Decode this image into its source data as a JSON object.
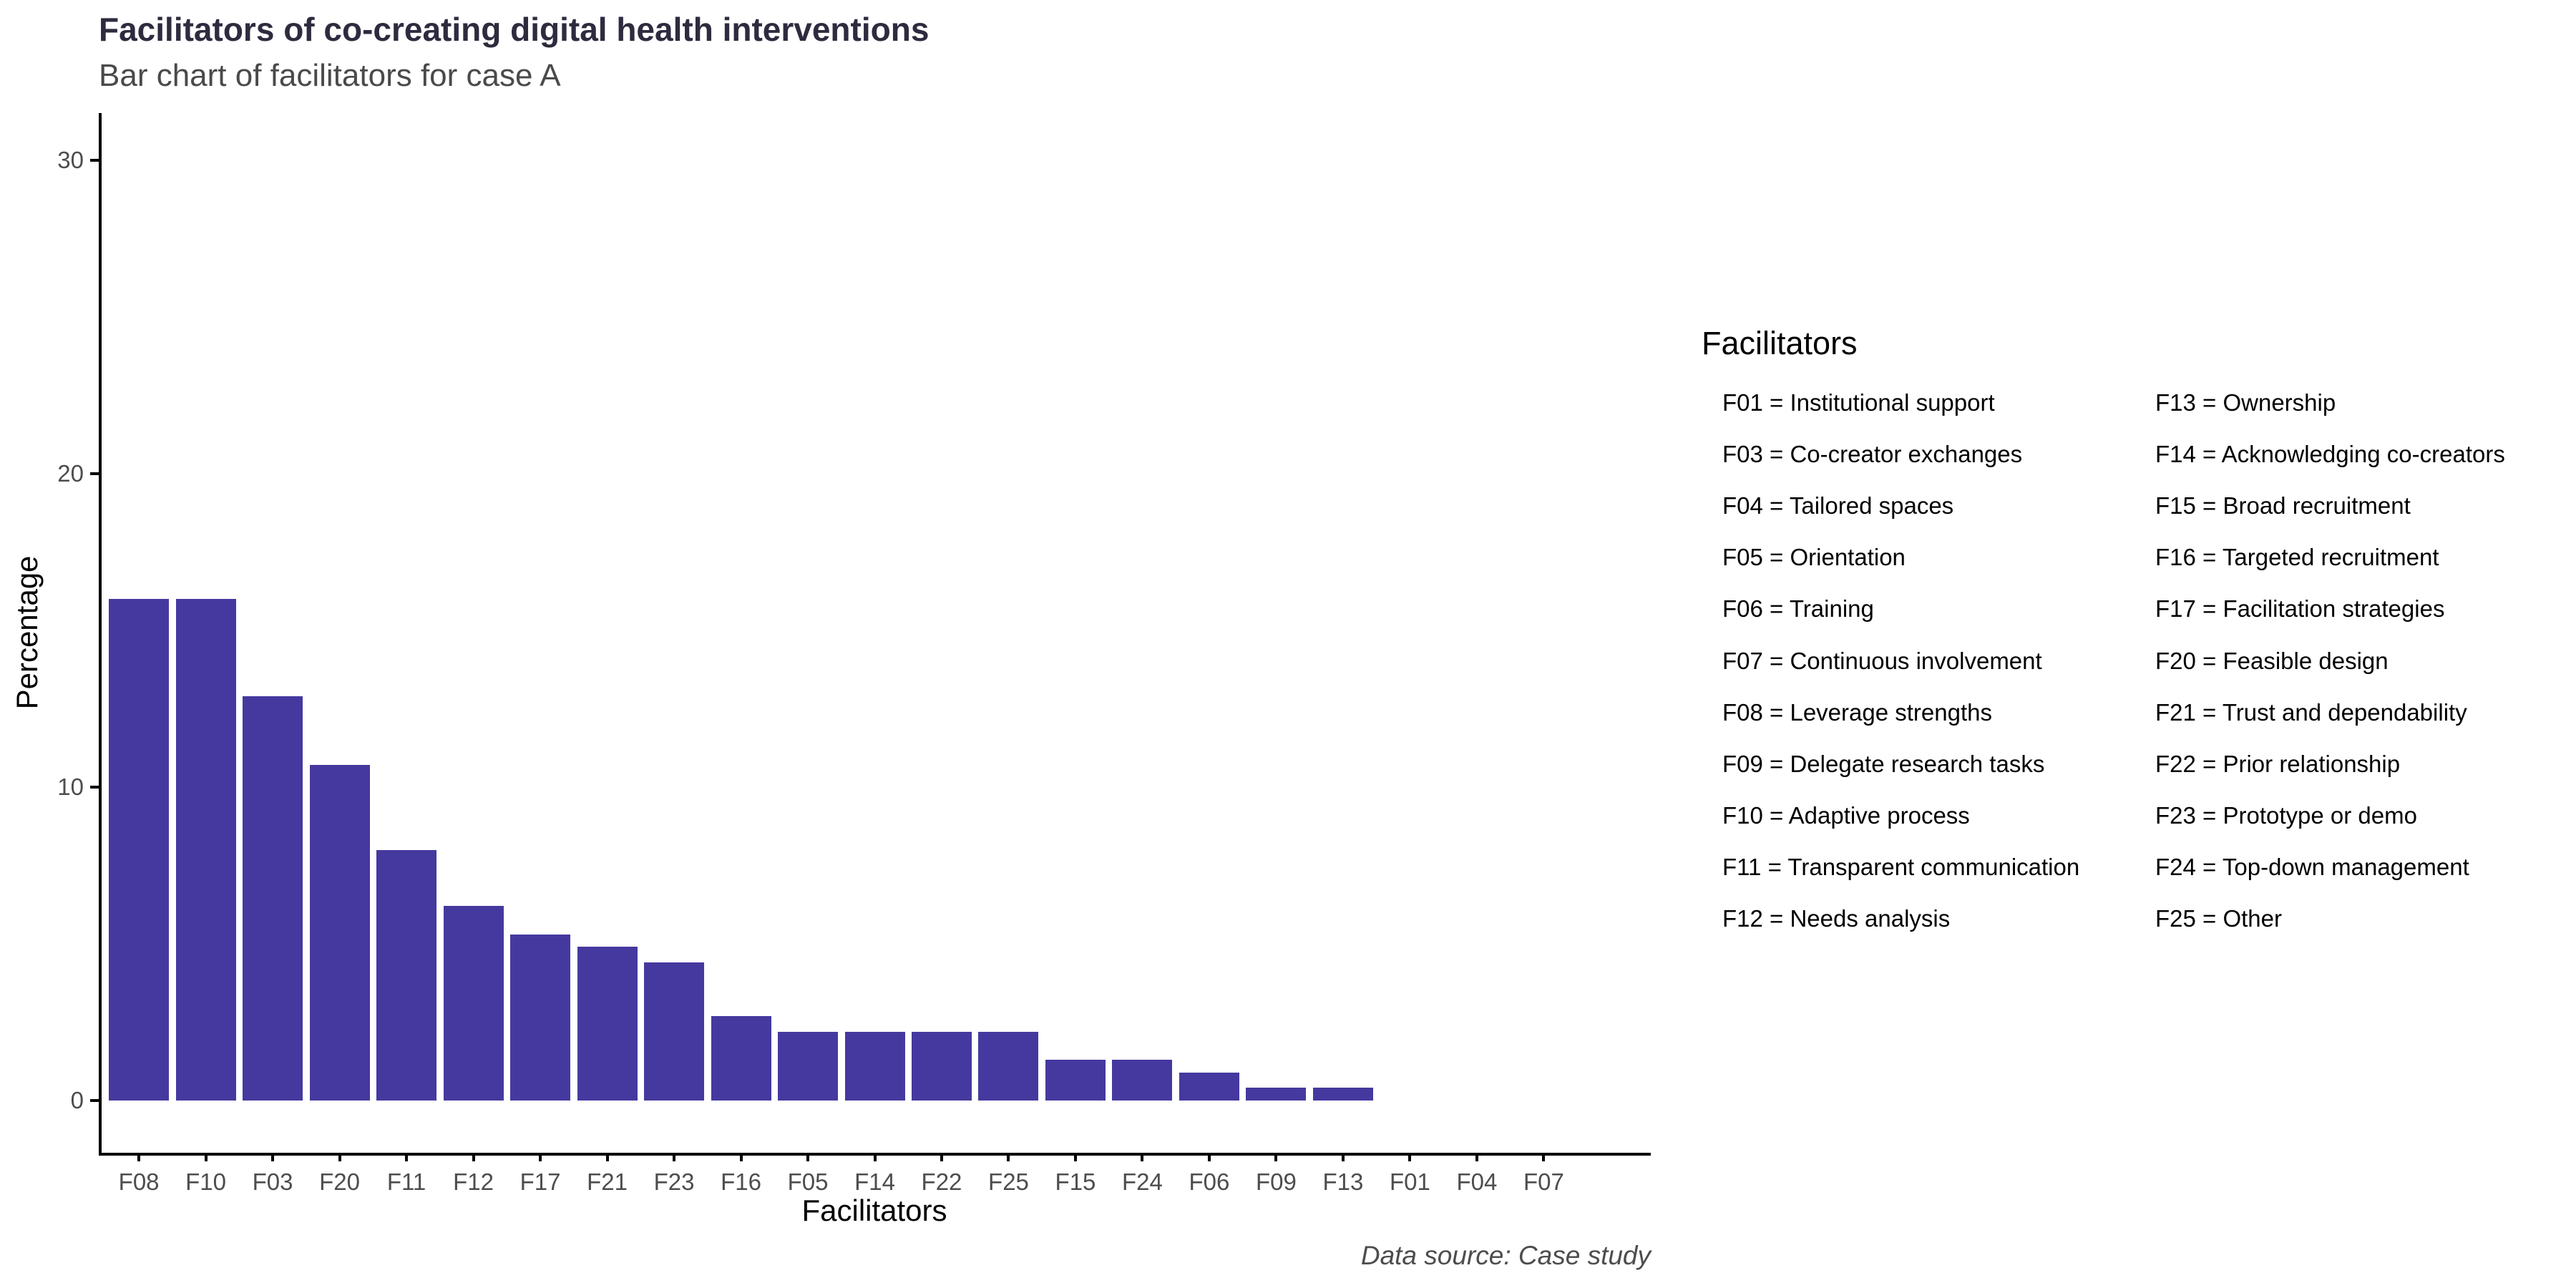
{
  "header": {
    "title": "Facilitators of co-creating digital health interventions",
    "subtitle": "Bar chart of facilitators for case A"
  },
  "footer": {
    "caption": "Data source: Case study"
  },
  "legend": {
    "title": "Facilitators",
    "columns": [
      [
        {
          "code": "F01",
          "label": "Institutional support"
        },
        {
          "code": "F03",
          "label": "Co-creator exchanges"
        },
        {
          "code": "F04",
          "label": "Tailored spaces"
        },
        {
          "code": "F05",
          "label": "Orientation"
        },
        {
          "code": "F06",
          "label": "Training"
        },
        {
          "code": "F07",
          "label": "Continuous involvement"
        },
        {
          "code": "F08",
          "label": "Leverage strengths"
        },
        {
          "code": "F09",
          "label": "Delegate research tasks"
        },
        {
          "code": "F10",
          "label": "Adaptive process"
        },
        {
          "code": "F11",
          "label": "Transparent communication"
        },
        {
          "code": "F12",
          "label": "Needs analysis"
        }
      ],
      [
        {
          "code": "F13",
          "label": "Ownership"
        },
        {
          "code": "F14",
          "label": "Acknowledging co-creators"
        },
        {
          "code": "F15",
          "label": "Broad recruitment"
        },
        {
          "code": "F16",
          "label": "Targeted recruitment"
        },
        {
          "code": "F17",
          "label": "Facilitation strategies"
        },
        {
          "code": "F20",
          "label": "Feasible design"
        },
        {
          "code": "F21",
          "label": "Trust and dependability"
        },
        {
          "code": "F22",
          "label": "Prior relationship"
        },
        {
          "code": "F23",
          "label": "Prototype or demo"
        },
        {
          "code": "F24",
          "label": "Top-down management"
        },
        {
          "code": "F25",
          "label": "Other"
        }
      ]
    ],
    "separator": " = "
  },
  "chart_data": {
    "type": "bar",
    "title": "Facilitators of co-creating digital health interventions",
    "subtitle": "Bar chart of facilitators for case A",
    "caption": "Data source: Case study",
    "categories": [
      "F08",
      "F10",
      "F03",
      "F20",
      "F11",
      "F12",
      "F17",
      "F21",
      "F23",
      "F16",
      "F05",
      "F14",
      "F22",
      "F25",
      "F15",
      "F24",
      "F06",
      "F09",
      "F13",
      "F01",
      "F04",
      "F07"
    ],
    "values": [
      16.0,
      16.0,
      12.9,
      10.7,
      8.0,
      6.2,
      5.3,
      4.9,
      4.4,
      2.7,
      2.2,
      2.2,
      2.2,
      2.2,
      1.3,
      1.3,
      0.9,
      0.4,
      0.4,
      0.0,
      0.0,
      0.0
    ],
    "xlabel": "Facilitators",
    "ylabel": "Percentage",
    "yticks": [
      0,
      10,
      20,
      30
    ],
    "ylim": [
      0,
      31.5
    ],
    "grid": false,
    "legend_position": "right",
    "bar_color": "#45399F",
    "axis_text_color": "#4D4D4D",
    "axis_line_color": "#000000",
    "title_color": "#2F2B3F",
    "subtitle_color": "#4A4A4A"
  }
}
